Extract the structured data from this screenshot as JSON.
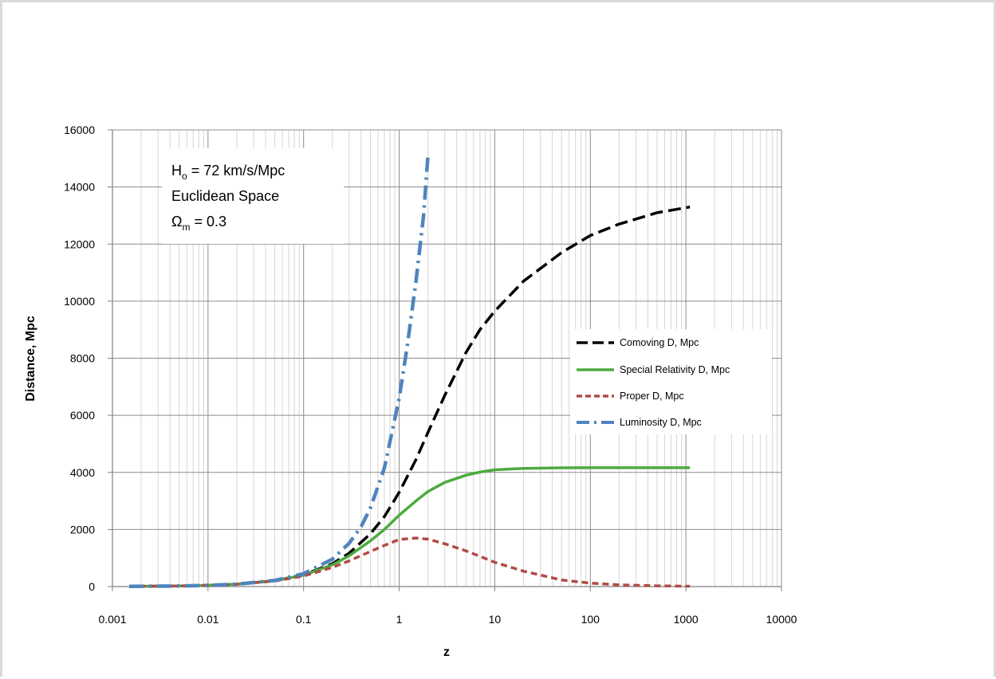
{
  "chart_data": {
    "type": "line",
    "title": "",
    "xlabel": "z",
    "ylabel": "Distance, Mpc",
    "xscale": "log",
    "xlim": [
      0.001,
      10000
    ],
    "ylim": [
      0,
      16000
    ],
    "x_ticks": [
      "0.001",
      "0.01",
      "0.1",
      "1",
      "10",
      "100",
      "1000",
      "10000"
    ],
    "y_ticks": [
      "0",
      "2000",
      "4000",
      "6000",
      "8000",
      "10000",
      "12000",
      "14000",
      "16000"
    ],
    "grid": true,
    "legend_position": "right",
    "annotation": {
      "line1_main": "H",
      "line1_sub": "o",
      "line1_rest": " = 72 km/s/Mpc",
      "line2": "Euclidean Space",
      "line3_main": "Ω",
      "line3_sub": "m",
      "line3_rest": " = 0.3"
    },
    "series": [
      {
        "name": "Comoving D, Mpc",
        "color": "#000000",
        "style": "dashed",
        "x": [
          0.0015,
          0.005,
          0.01,
          0.02,
          0.05,
          0.1,
          0.2,
          0.3,
          0.5,
          0.7,
          1,
          1.5,
          2,
          3,
          5,
          7,
          10,
          20,
          50,
          100,
          200,
          500,
          1100
        ],
        "y": [
          6,
          21,
          42,
          83,
          205,
          410,
          800,
          1170,
          1850,
          2450,
          3300,
          4450,
          5400,
          6700,
          8200,
          9000,
          9650,
          10700,
          11700,
          12300,
          12700,
          13100,
          13300
        ]
      },
      {
        "name": "Special Relativity D, Mpc",
        "color": "#4daa3f",
        "style": "solid",
        "x": [
          0.0015,
          0.005,
          0.01,
          0.02,
          0.05,
          0.1,
          0.2,
          0.3,
          0.5,
          0.7,
          1,
          1.5,
          2,
          3,
          5,
          7,
          10,
          20,
          50,
          100,
          200,
          500,
          1100
        ],
        "y": [
          6,
          21,
          42,
          83,
          205,
          400,
          760,
          1080,
          1600,
          2000,
          2500,
          3000,
          3330,
          3650,
          3900,
          4010,
          4090,
          4140,
          4160,
          4165,
          4165,
          4165,
          4165
        ]
      },
      {
        "name": "Proper D, Mpc",
        "color": "#b04b45",
        "style": "dashed",
        "x": [
          0.0015,
          0.005,
          0.01,
          0.02,
          0.05,
          0.1,
          0.2,
          0.3,
          0.5,
          0.7,
          1,
          1.5,
          2,
          3,
          5,
          7,
          10,
          20,
          50,
          100,
          200,
          500,
          1100
        ],
        "y": [
          6,
          21,
          41,
          81,
          195,
          370,
          670,
          900,
          1230,
          1440,
          1650,
          1700,
          1660,
          1500,
          1250,
          1060,
          850,
          540,
          230,
          120,
          60,
          25,
          12
        ]
      },
      {
        "name": "Luminosity D, Mpc",
        "color": "#4f84bd",
        "style": "dashdot",
        "x": [
          0.0015,
          0.005,
          0.01,
          0.02,
          0.05,
          0.1,
          0.2,
          0.3,
          0.4,
          0.5,
          0.7,
          1,
          1.2,
          1.5,
          1.8,
          2
        ],
        "y": [
          6,
          21,
          42,
          85,
          215,
          450,
          960,
          1520,
          2100,
          2750,
          4150,
          6600,
          8300,
          10700,
          13000,
          15100
        ]
      }
    ]
  }
}
